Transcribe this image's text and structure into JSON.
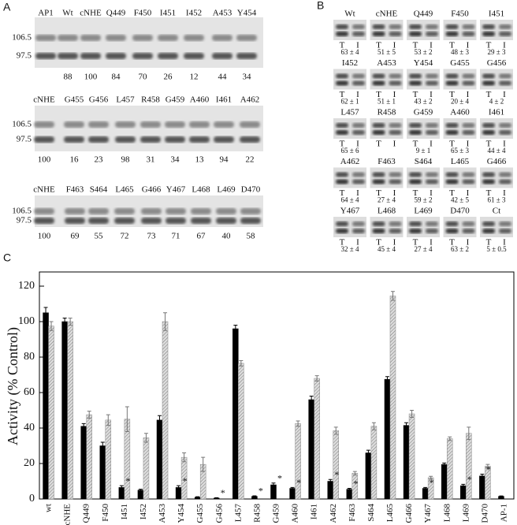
{
  "panel_a": {
    "label": "A",
    "markers": [
      "106.5",
      "97.5"
    ],
    "blots": [
      {
        "lanes": [
          "AP1",
          "Wt",
          "cNHE",
          "Q449",
          "F450",
          "I451",
          "I452",
          "A453",
          "Y454"
        ],
        "values": [
          null,
          88,
          100,
          84,
          70,
          26,
          12,
          44,
          34
        ]
      },
      {
        "lanes": [
          "cNHE",
          "G455",
          "G456",
          "L457",
          "R458",
          "G459",
          "A460",
          "I461",
          "A462"
        ],
        "values": [
          100,
          16,
          23,
          98,
          31,
          34,
          13,
          94,
          22
        ]
      },
      {
        "lanes": [
          "cNHE",
          "F463",
          "S464",
          "L465",
          "G466",
          "Y467",
          "L468",
          "L469",
          "D470"
        ],
        "values": [
          100,
          69,
          55,
          72,
          73,
          71,
          67,
          40,
          58
        ]
      }
    ]
  },
  "panel_b": {
    "label": "B",
    "lane_labels": [
      "T",
      "I"
    ],
    "cells": [
      {
        "name": "Wt",
        "value": "63 ± 4"
      },
      {
        "name": "cNHE",
        "value": "51 ± 5"
      },
      {
        "name": "Q449",
        "value": "53 ± 2"
      },
      {
        "name": "F450",
        "value": "48 ± 3"
      },
      {
        "name": "I451",
        "value": "29 ± 3"
      },
      {
        "name": "I452",
        "value": "62 ± 1"
      },
      {
        "name": "A453",
        "value": "51 ± 1"
      },
      {
        "name": "Y454",
        "value": "43 ± 2"
      },
      {
        "name": "G455",
        "value": "20 ± 4"
      },
      {
        "name": "G456",
        "value": "4 ± 2"
      },
      {
        "name": "L457",
        "value": "65 ± 6"
      },
      {
        "name": "R458",
        "value": null
      },
      {
        "name": "G459",
        "value": "9 ± 1"
      },
      {
        "name": "A460",
        "value": "65 ± 3"
      },
      {
        "name": "I461",
        "value": "44 ± 4"
      },
      {
        "name": "A462",
        "value": "64 ± 4"
      },
      {
        "name": "F463",
        "value": "27 ± 4"
      },
      {
        "name": "S464",
        "value": "59 ± 2"
      },
      {
        "name": "L465",
        "value": "42 ± 5"
      },
      {
        "name": "G466",
        "value": "61 ± 3"
      },
      {
        "name": "Y467",
        "value": "32 ± 4"
      },
      {
        "name": "L468",
        "value": "45 ± 4"
      },
      {
        "name": "L469",
        "value": "27 ± 4"
      },
      {
        "name": "D470",
        "value": "63 ± 2"
      },
      {
        "name": "Ct",
        "value": "5 ± 0.5"
      }
    ]
  },
  "chart_data": {
    "type": "bar",
    "label": "C",
    "y_label": "Activity (% Control)",
    "categories": [
      "wt",
      "cNHE",
      "Q449",
      "F450",
      "I451",
      "I452",
      "A453",
      "Y454",
      "G455",
      "G456",
      "L457",
      "R458",
      "G459",
      "A460",
      "I461",
      "A462",
      "F463",
      "S464",
      "L465",
      "G466",
      "Y467",
      "L468",
      "L469",
      "D470",
      "AP-1"
    ],
    "series": [
      {
        "color": "#000000",
        "values": [
          105,
          100,
          41,
          30,
          6.5,
          5,
          44.5,
          6.5,
          1,
          0.5,
          96,
          1.5,
          8,
          6,
          56,
          10,
          5.5,
          26,
          67.5,
          41.5,
          6,
          19.5,
          7.5,
          13,
          1.5
        ],
        "errors": [
          3,
          2,
          1.5,
          2,
          1,
          0.5,
          2.5,
          1,
          0.3,
          0.2,
          2,
          0.3,
          1,
          0.5,
          2,
          1,
          0.5,
          1.5,
          1.5,
          1.5,
          0.5,
          0.8,
          0.8,
          1,
          0.2
        ]
      },
      {
        "color": "#bbbbbb",
        "values": [
          97.5,
          100,
          47.5,
          44.5,
          45,
          34.5,
          100,
          23.5,
          19.5,
          null,
          76.5,
          null,
          null,
          42.5,
          68,
          38.5,
          14.5,
          41,
          114.5,
          48,
          12,
          34,
          37,
          18.5,
          null
        ],
        "errors": [
          2.5,
          2,
          2,
          3,
          7,
          2.5,
          5,
          2.5,
          4,
          null,
          1.5,
          null,
          null,
          1.5,
          1.5,
          2,
          1,
          2,
          2.5,
          2,
          0.8,
          1,
          3.5,
          1,
          null
        ]
      }
    ],
    "significance": [
      null,
      null,
      null,
      null,
      "*",
      null,
      null,
      "*",
      null,
      "*",
      null,
      "*",
      "*",
      "*",
      null,
      "*",
      "*",
      null,
      null,
      null,
      "*",
      null,
      "*",
      "*",
      null
    ],
    "ylim": [
      0,
      128
    ],
    "yticks": [
      0,
      20,
      40,
      60,
      80,
      100,
      120
    ]
  }
}
